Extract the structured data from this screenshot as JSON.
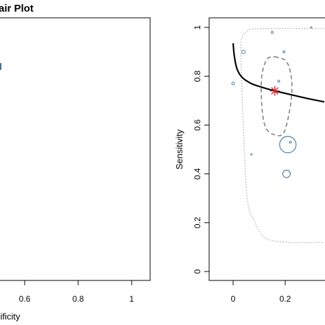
{
  "chart_data": [
    {
      "panel": "left",
      "type": "scatter",
      "title": "air Plot",
      "xlabel": "cificity",
      "ylabel": "",
      "xlim": [
        0.4,
        1.0
      ],
      "ylim": [
        0,
        1
      ],
      "x_ticks": [
        {
          "value": 0.6,
          "label": "0.6"
        },
        {
          "value": 0.8,
          "label": "0.8"
        },
        {
          "value": 1.0,
          "label": "1"
        }
      ],
      "marks": [
        {
          "kind": "bar-marker",
          "x": 0.405,
          "y": 0.84,
          "color": "#4a6f8a"
        }
      ]
    },
    {
      "panel": "right",
      "type": "scatter",
      "title": "",
      "xlabel": "",
      "ylabel": "Sensitivity",
      "xlim": [
        0,
        0.35
      ],
      "ylim": [
        0,
        1
      ],
      "x_ticks": [
        {
          "value": 0,
          "label": "0"
        },
        {
          "value": 0.2,
          "label": "0.2"
        }
      ],
      "y_ticks": [
        {
          "value": 0,
          "label": "0"
        },
        {
          "value": 0.2,
          "label": "0.2"
        },
        {
          "value": 0.4,
          "label": "0.4"
        },
        {
          "value": 0.6,
          "label": "0.6"
        },
        {
          "value": 0.8,
          "label": "0.8"
        },
        {
          "value": 1,
          "label": "1"
        }
      ],
      "colors": {
        "study_points": "#4a7fa5",
        "summary_point": "#c0282d",
        "sroc_curve": "#000000",
        "confidence_region": "#808080",
        "prediction_region": "#a6a6a6"
      },
      "studies": [
        {
          "x": 0.0,
          "y": 0.77,
          "r": 2
        },
        {
          "x": 0.04,
          "y": 0.9,
          "r": 2.5
        },
        {
          "x": 0.15,
          "y": 0.98,
          "r": 1.5
        },
        {
          "x": 0.175,
          "y": 0.78,
          "r": 1.5
        },
        {
          "x": 0.195,
          "y": 0.9,
          "r": 1.5
        },
        {
          "x": 0.22,
          "y": 0.53,
          "r": 1.5
        },
        {
          "x": 0.21,
          "y": 0.52,
          "r": 12
        },
        {
          "x": 0.205,
          "y": 0.4,
          "r": 5.5
        },
        {
          "x": 0.07,
          "y": 0.48,
          "r": 1
        },
        {
          "x": 0.3,
          "y": 1.0,
          "r": 1
        }
      ],
      "summary_point": {
        "x": 0.16,
        "y": 0.74
      },
      "sroc_curve": [
        {
          "x": 0.0,
          "y": 0.935
        },
        {
          "x": 0.005,
          "y": 0.88
        },
        {
          "x": 0.015,
          "y": 0.83
        },
        {
          "x": 0.035,
          "y": 0.795
        },
        {
          "x": 0.07,
          "y": 0.77
        },
        {
          "x": 0.11,
          "y": 0.755
        },
        {
          "x": 0.16,
          "y": 0.74
        },
        {
          "x": 0.22,
          "y": 0.725
        },
        {
          "x": 0.28,
          "y": 0.71
        },
        {
          "x": 0.35,
          "y": 0.695
        }
      ],
      "confidence_region": [
        {
          "x": 0.16,
          "y": 0.88
        },
        {
          "x": 0.205,
          "y": 0.86
        },
        {
          "x": 0.225,
          "y": 0.78
        },
        {
          "x": 0.22,
          "y": 0.68
        },
        {
          "x": 0.195,
          "y": 0.57
        },
        {
          "x": 0.16,
          "y": 0.56
        },
        {
          "x": 0.125,
          "y": 0.59
        },
        {
          "x": 0.11,
          "y": 0.68
        },
        {
          "x": 0.11,
          "y": 0.8
        },
        {
          "x": 0.13,
          "y": 0.87
        },
        {
          "x": 0.16,
          "y": 0.88
        }
      ],
      "prediction_region": [
        {
          "x": 0.35,
          "y": 0.995
        },
        {
          "x": 0.1,
          "y": 0.995
        },
        {
          "x": 0.055,
          "y": 0.985
        },
        {
          "x": 0.035,
          "y": 0.96
        },
        {
          "x": 0.03,
          "y": 0.9
        },
        {
          "x": 0.035,
          "y": 0.7
        },
        {
          "x": 0.045,
          "y": 0.45
        },
        {
          "x": 0.05,
          "y": 0.35
        },
        {
          "x": 0.06,
          "y": 0.26
        },
        {
          "x": 0.08,
          "y": 0.21
        },
        {
          "x": 0.12,
          "y": 0.14
        },
        {
          "x": 0.2,
          "y": 0.12
        },
        {
          "x": 0.35,
          "y": 0.12
        }
      ]
    }
  ]
}
